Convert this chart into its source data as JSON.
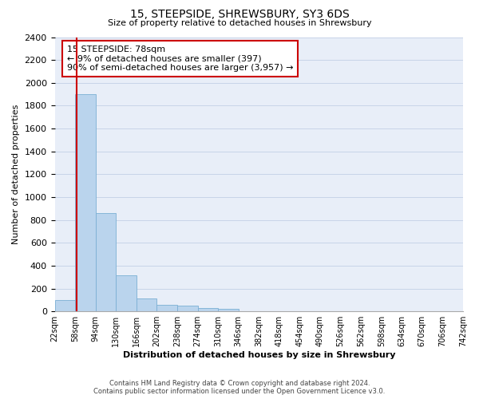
{
  "title": "15, STEEPSIDE, SHREWSBURY, SY3 6DS",
  "subtitle": "Size of property relative to detached houses in Shrewsbury",
  "xlabel": "Distribution of detached houses by size in Shrewsbury",
  "ylabel": "Number of detached properties",
  "bin_labels": [
    "22sqm",
    "58sqm",
    "94sqm",
    "130sqm",
    "166sqm",
    "202sqm",
    "238sqm",
    "274sqm",
    "310sqm",
    "346sqm",
    "382sqm",
    "418sqm",
    "454sqm",
    "490sqm",
    "526sqm",
    "562sqm",
    "598sqm",
    "634sqm",
    "670sqm",
    "706sqm",
    "742sqm"
  ],
  "bar_values": [
    100,
    1900,
    860,
    315,
    115,
    60,
    50,
    30,
    20,
    0,
    0,
    0,
    0,
    0,
    0,
    0,
    0,
    0,
    0,
    0
  ],
  "red_line_x": 0.555,
  "annotation_text": "15 STEEPSIDE: 78sqm\n← 9% of detached houses are smaller (397)\n90% of semi-detached houses are larger (3,957) →",
  "bar_color": "#bad4ed",
  "bar_edge_color": "#7bafd4",
  "red_line_color": "#cc0000",
  "annotation_box_color": "#ffffff",
  "annotation_box_edge": "#cc0000",
  "grid_color": "#c8d4e8",
  "background_color": "#e8eef8",
  "ylim": [
    0,
    2400
  ],
  "yticks": [
    0,
    200,
    400,
    600,
    800,
    1000,
    1200,
    1400,
    1600,
    1800,
    2000,
    2200,
    2400
  ],
  "footer_line1": "Contains HM Land Registry data © Crown copyright and database right 2024.",
  "footer_line2": "Contains public sector information licensed under the Open Government Licence v3.0."
}
